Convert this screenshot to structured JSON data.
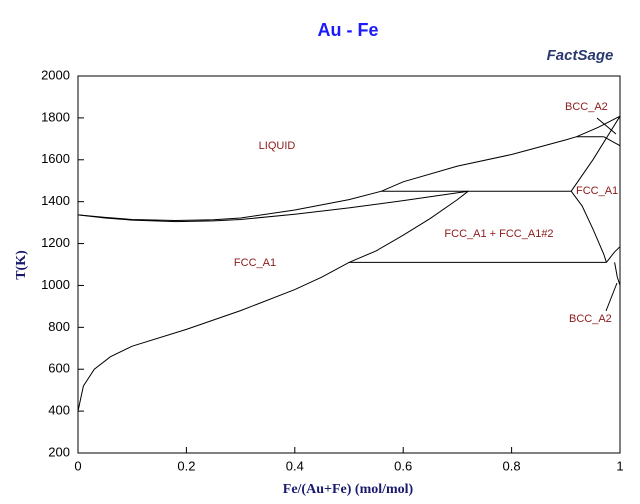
{
  "chart_data": {
    "type": "line",
    "title": "Au - Fe",
    "logo": "FactSage",
    "x_label": "Fe/(Au+Fe) (mol/mol)",
    "y_label": "T(K)",
    "xlim": [
      0,
      1
    ],
    "xticks": [
      0,
      0.2,
      0.4,
      0.6,
      0.8,
      1
    ],
    "ylim": [
      200,
      2000
    ],
    "yticks": [
      200,
      400,
      600,
      800,
      1000,
      1200,
      1400,
      1600,
      1800,
      2000
    ],
    "line_color": "#000000",
    "annotations": [
      "LIQUID",
      "FCC_A1",
      "FCC_A1 + FCC_A1#2",
      "FCC_A1",
      "BCC_A2",
      "BCC_A2"
    ],
    "series": [
      {
        "x": [
          0,
          0.05,
          0.1,
          0.18,
          0.25,
          0.3,
          0.4,
          0.5,
          0.56,
          0.6,
          0.7,
          0.8,
          0.9,
          0.92,
          0.96,
          1
        ],
        "values": [
          1337,
          1325,
          1315,
          1310,
          1314,
          1322,
          1360,
          1410,
          1450,
          1495,
          1570,
          1625,
          1695,
          1710,
          1755,
          1808
        ]
      },
      {
        "x": [
          0,
          0.05,
          0.1,
          0.18,
          0.25,
          0.3,
          0.4,
          0.5,
          0.6,
          0.72
        ],
        "values": [
          1337,
          1322,
          1312,
          1305,
          1308,
          1315,
          1340,
          1370,
          1405,
          1450
        ]
      },
      {
        "x": [
          0.56,
          0.91
        ],
        "values": [
          1450,
          1450
        ]
      },
      {
        "x": [
          0,
          0.01,
          0.03,
          0.06,
          0.1,
          0.2,
          0.3,
          0.4,
          0.45,
          0.5,
          0.55,
          0.6,
          0.65,
          0.7,
          0.72
        ],
        "values": [
          400,
          520,
          600,
          660,
          710,
          790,
          880,
          980,
          1040,
          1110,
          1165,
          1240,
          1320,
          1410,
          1450
        ]
      },
      {
        "x": [
          0.5,
          0.975
        ],
        "values": [
          1110,
          1110
        ]
      },
      {
        "x": [
          0.91,
          0.93,
          0.95,
          0.97,
          0.975
        ],
        "values": [
          1450,
          1380,
          1270,
          1150,
          1110
        ]
      },
      {
        "x": [
          0.92,
          0.97
        ],
        "values": [
          1710,
          1710
        ]
      },
      {
        "x": [
          0.91,
          0.95,
          1
        ],
        "values": [
          1450,
          1600,
          1808
        ]
      },
      {
        "x": [
          0.97,
          1
        ],
        "values": [
          1710,
          1667
        ]
      },
      {
        "x": [
          0.975,
          0.99,
          1
        ],
        "values": [
          1110,
          1160,
          1185
        ]
      },
      {
        "x": [
          0.99,
          0.995,
          1
        ],
        "values": [
          1110,
          1040,
          1000
        ]
      }
    ]
  }
}
